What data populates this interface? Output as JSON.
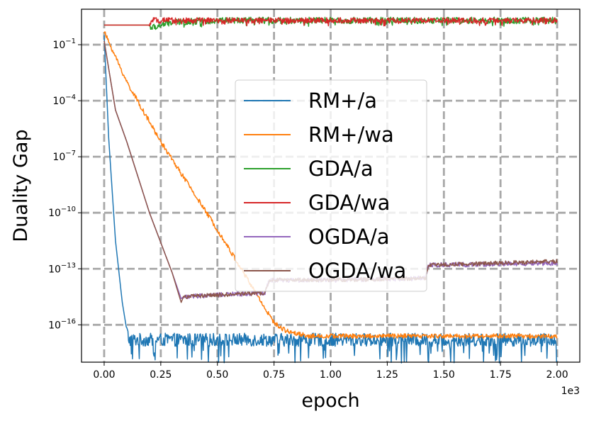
{
  "chart_data": {
    "type": "line",
    "title": "",
    "xlabel": "epoch",
    "ylabel": "Duality Gap",
    "x_offset_label": "1e3",
    "x_scale_factor": 1000,
    "xlim": [
      -0.1,
      2.1
    ],
    "ylim_log10": [
      -18,
      0.9
    ],
    "yscale": "log",
    "grid": true,
    "legend_position": "center",
    "x_ticks": [
      0.0,
      0.25,
      0.5,
      0.75,
      1.0,
      1.25,
      1.5,
      1.75,
      2.0
    ],
    "x_tick_labels": [
      "0.00",
      "0.25",
      "0.50",
      "0.75",
      "1.00",
      "1.25",
      "1.50",
      "1.75",
      "2.00"
    ],
    "y_ticks_log10": [
      -1,
      -4,
      -7,
      -10,
      -13,
      -16
    ],
    "y_tick_labels": [
      {
        "base": "10",
        "exp": "−1"
      },
      {
        "base": "10",
        "exp": "−4"
      },
      {
        "base": "10",
        "exp": "−7"
      },
      {
        "base": "10",
        "exp": "−10"
      },
      {
        "base": "10",
        "exp": "−13"
      },
      {
        "base": "10",
        "exp": "−16"
      }
    ],
    "series": [
      {
        "name": "RM+/a",
        "color": "#1f77b4",
        "x": [
          0,
          0.02,
          0.05,
          0.08,
          0.1,
          0.11,
          0.2,
          0.5,
          1.0,
          1.5,
          2.0
        ],
        "log10_y": [
          -0.5,
          -6.0,
          -11.5,
          -14.8,
          -16.3,
          -16.8,
          -16.8,
          -16.8,
          -16.8,
          -16.8,
          -16.8
        ],
        "noise": {
          "from": 0.1,
          "amplitude": 0.7,
          "bias": -0.3
        }
      },
      {
        "name": "RM+/wa",
        "color": "#ff7f0e",
        "x": [
          0,
          0.1,
          0.25,
          0.5,
          0.6,
          0.7,
          0.75,
          0.8,
          0.9,
          1.0,
          1.5,
          2.0
        ],
        "log10_y": [
          -0.3,
          -3.0,
          -6.2,
          -10.9,
          -12.9,
          -14.9,
          -15.9,
          -16.3,
          -16.6,
          -16.6,
          -16.6,
          -16.6
        ],
        "noise": {
          "from": 0.0,
          "amplitude": 0.25,
          "bias": 0
        }
      },
      {
        "name": "GDA/a",
        "color": "#2ca02c",
        "x": [
          0,
          0.2,
          0.21,
          0.3,
          0.5,
          1.0,
          1.5,
          2.0
        ],
        "log10_y": [
          0.05,
          0.05,
          -0.1,
          0.2,
          0.3,
          0.3,
          0.3,
          0.3
        ],
        "noise": {
          "from": 0.2,
          "amplitude": 0.35,
          "bias": -0.05
        }
      },
      {
        "name": "GDA/wa",
        "color": "#d62728",
        "x": [
          0,
          0.2,
          0.21,
          0.5,
          1.0,
          1.5,
          2.0
        ],
        "log10_y": [
          0.05,
          0.05,
          0.3,
          0.3,
          0.3,
          0.3,
          0.3
        ],
        "noise": {
          "from": 0.2,
          "amplitude": 0.3,
          "bias": -0.05
        }
      },
      {
        "name": "OGDA/a",
        "color": "#9467bd",
        "x": [
          0,
          0.05,
          0.1,
          0.2,
          0.3,
          0.34,
          0.35,
          0.5,
          0.71,
          0.72,
          0.73,
          1.0,
          1.42,
          1.43,
          1.44,
          2.0
        ],
        "log10_y": [
          -0.8,
          -4.5,
          -6.2,
          -10.0,
          -13.2,
          -14.6,
          -14.5,
          -14.4,
          -14.3,
          -13.9,
          -13.6,
          -13.6,
          -13.5,
          -12.9,
          -12.8,
          -12.7
        ],
        "noise": {
          "from": 0.35,
          "amplitude": 0.25,
          "bias": 0
        }
      },
      {
        "name": "OGDA/wa",
        "color": "#8c564b",
        "x": [
          0,
          0.05,
          0.1,
          0.2,
          0.3,
          0.34,
          0.35,
          0.5,
          0.71,
          0.72,
          0.73,
          1.0,
          1.42,
          1.43,
          1.44,
          2.0
        ],
        "log10_y": [
          -0.8,
          -4.5,
          -6.2,
          -10.0,
          -13.2,
          -14.8,
          -14.5,
          -14.4,
          -14.3,
          -13.9,
          -13.6,
          -13.6,
          -13.5,
          -12.9,
          -12.8,
          -12.6
        ],
        "noise": {
          "from": 0.35,
          "amplitude": 0.22,
          "bias": 0
        }
      }
    ]
  }
}
